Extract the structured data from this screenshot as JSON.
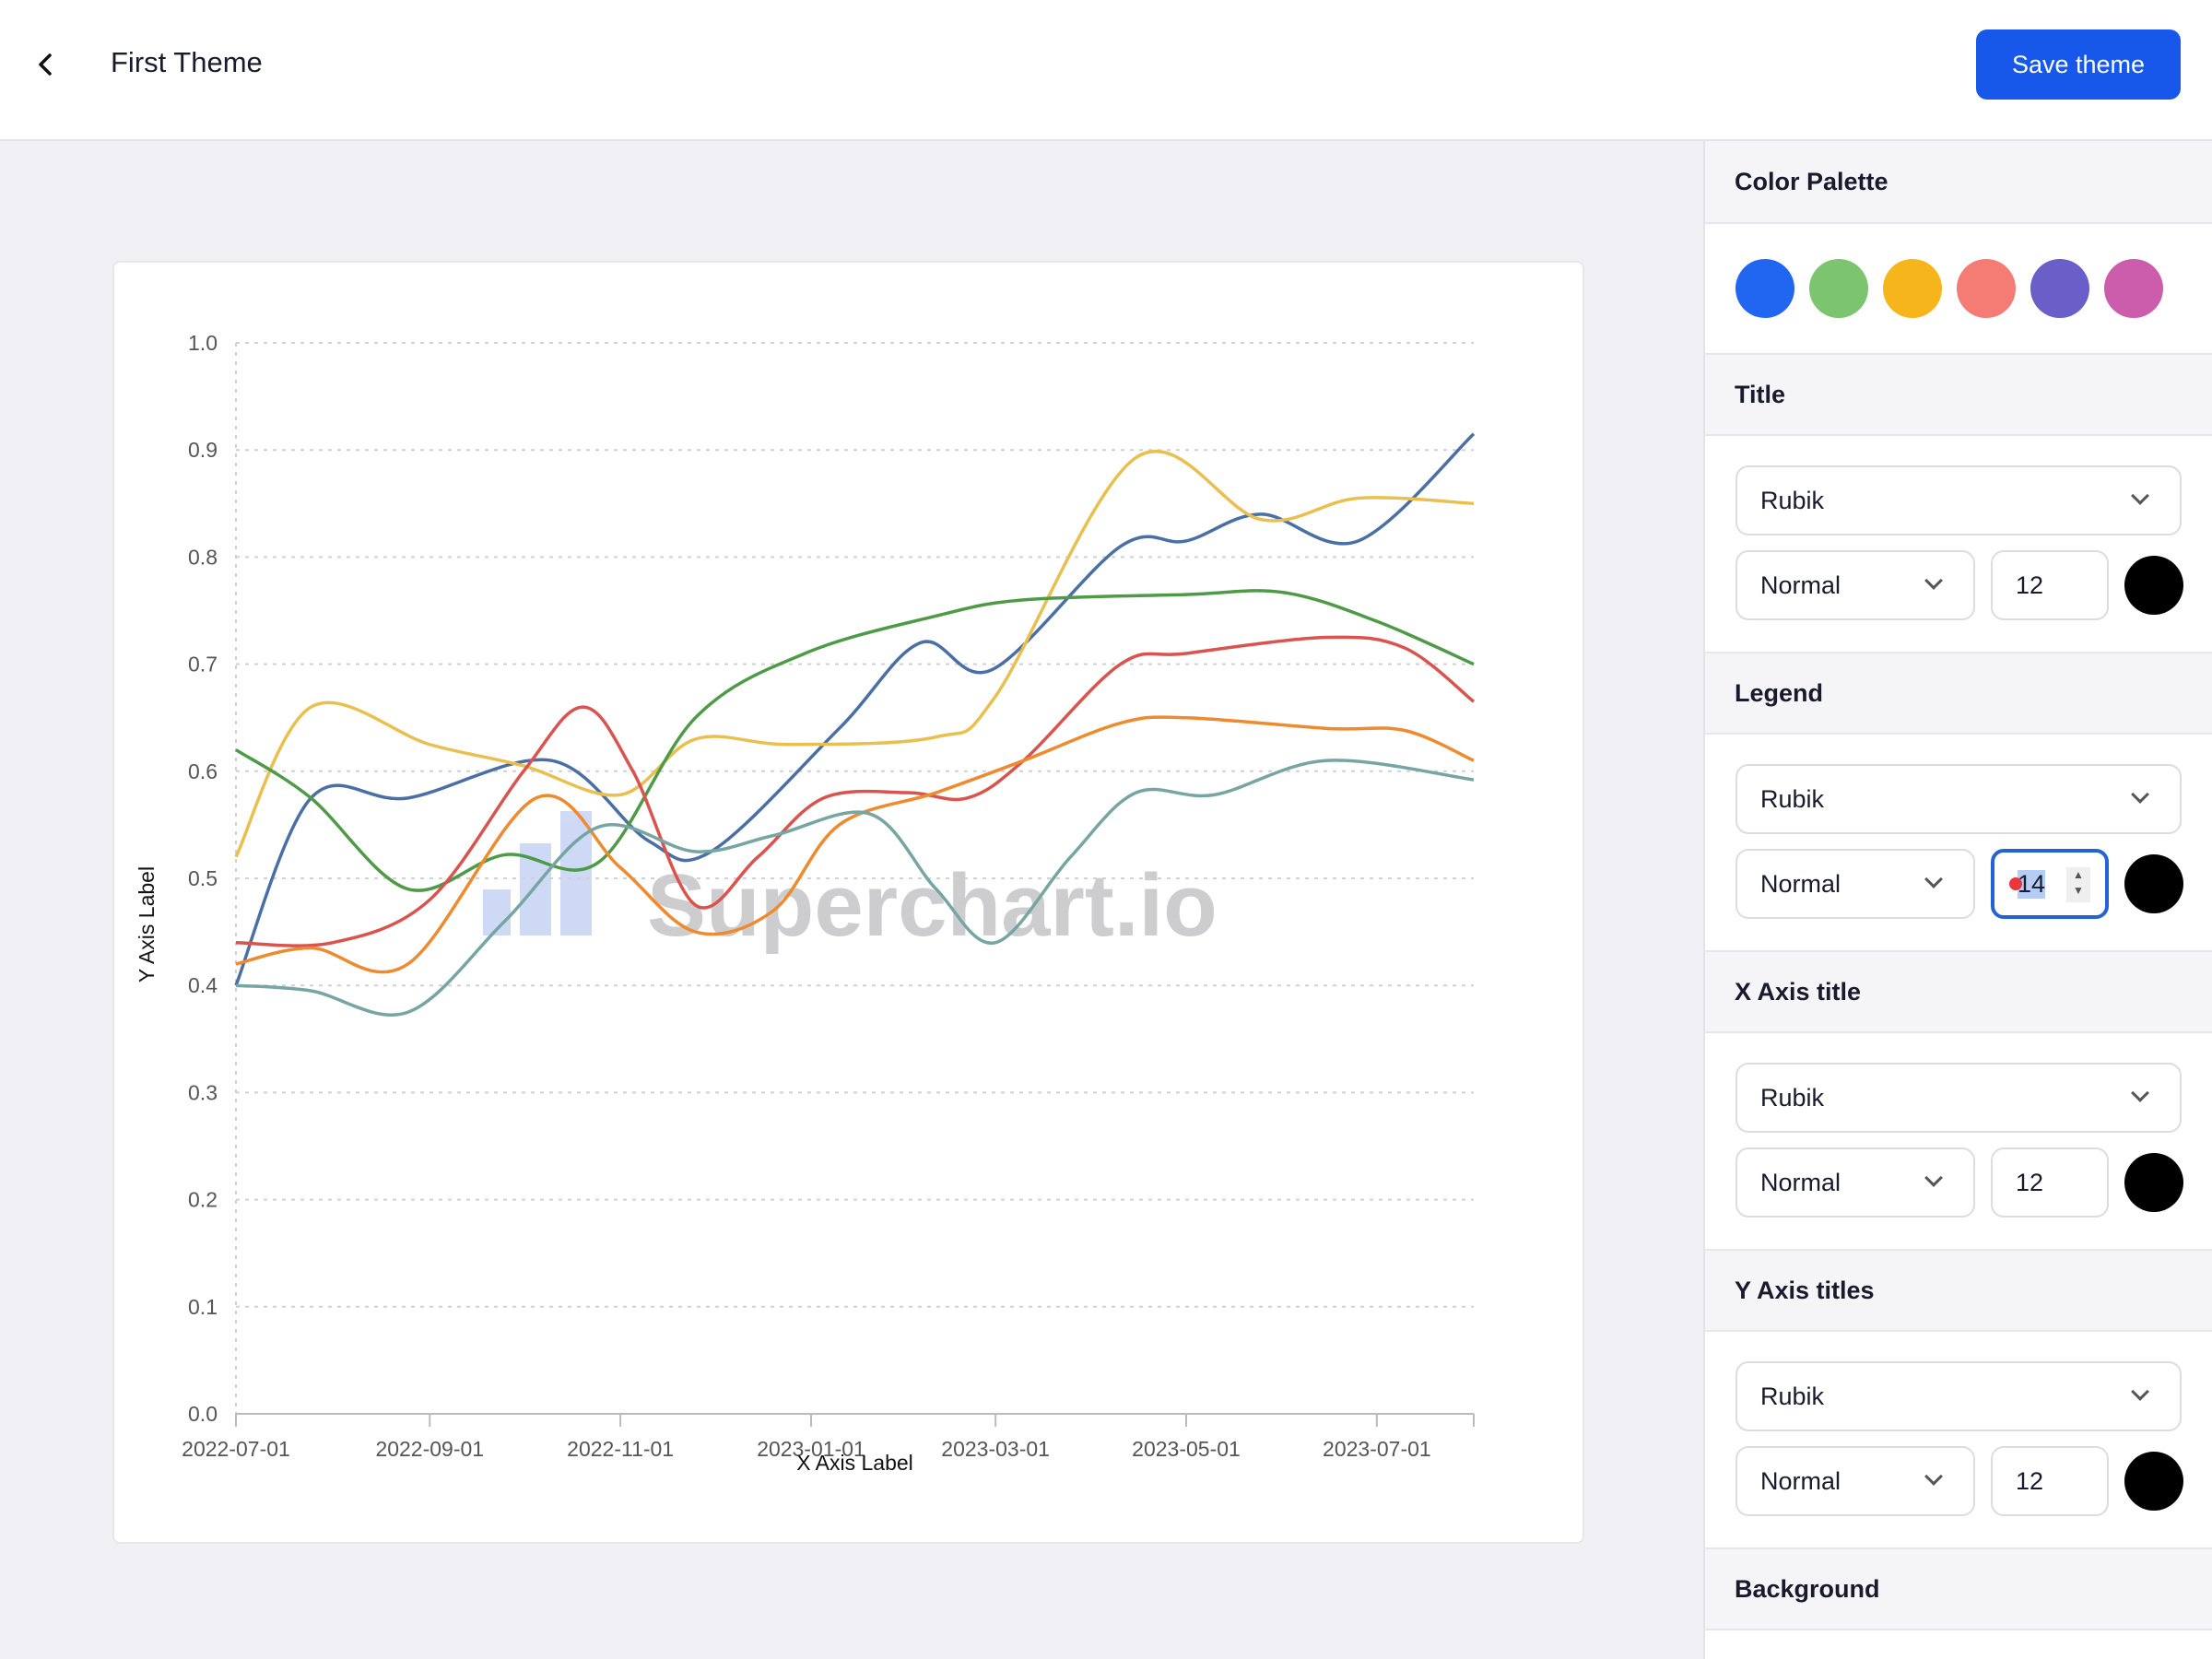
{
  "header": {
    "title": "First Theme",
    "save_label": "Save theme",
    "back_icon": "chevron-left-icon"
  },
  "sidebar": {
    "palette_title": "Color Palette",
    "palette": [
      "#2166f0",
      "#7cc46f",
      "#f7b51c",
      "#f47c74",
      "#6a5ec9",
      "#cc5dac"
    ],
    "sections": [
      {
        "title": "Title",
        "font": "Rubik",
        "weight": "Normal",
        "size": "12",
        "color": "#000000"
      },
      {
        "title": "Legend",
        "font": "Rubik",
        "weight": "Normal",
        "size": "14",
        "color": "#000000",
        "focused": true
      },
      {
        "title": "X Axis title",
        "font": "Rubik",
        "weight": "Normal",
        "size": "12",
        "color": "#000000"
      },
      {
        "title": "Y Axis titles",
        "font": "Rubik",
        "weight": "Normal",
        "size": "12",
        "color": "#000000"
      }
    ],
    "background_title": "Background"
  },
  "chart_data": {
    "type": "line",
    "xlabel": "X Axis Label",
    "ylabel": "Y Axis Label",
    "ylim": [
      0,
      1.0
    ],
    "xlim": [
      "2022-07-01",
      "2023-08-01"
    ],
    "yticks": [
      "0.0",
      "0.1",
      "0.2",
      "0.3",
      "0.4",
      "0.5",
      "0.6",
      "0.7",
      "0.8",
      "0.9",
      "1.0"
    ],
    "xticks": [
      "2022-07-01",
      "2022-09-01",
      "2022-11-01",
      "2023-01-01",
      "2023-03-01",
      "2023-05-01",
      "2023-07-01"
    ],
    "grid": true,
    "smooth": true,
    "watermark": "Superchart.io",
    "series": [
      {
        "color": "#4a6fa5",
        "points": [
          [
            "2022-07-01",
            0.4
          ],
          [
            "2022-07-25",
            0.575
          ],
          [
            "2022-08-25",
            0.575
          ],
          [
            "2022-10-10",
            0.61
          ],
          [
            "2022-11-10",
            0.535
          ],
          [
            "2022-11-30",
            0.525
          ],
          [
            "2023-01-10",
            0.64
          ],
          [
            "2023-02-05",
            0.72
          ],
          [
            "2023-02-28",
            0.695
          ],
          [
            "2023-04-10",
            0.81
          ],
          [
            "2023-05-01",
            0.815
          ],
          [
            "2023-05-25",
            0.84
          ],
          [
            "2023-06-25",
            0.815
          ],
          [
            "2023-08-01",
            0.915
          ]
        ]
      },
      {
        "color": "#e9c04f",
        "points": [
          [
            "2022-07-01",
            0.52
          ],
          [
            "2022-07-25",
            0.66
          ],
          [
            "2022-09-01",
            0.625
          ],
          [
            "2022-10-01",
            0.605
          ],
          [
            "2022-11-01",
            0.578
          ],
          [
            "2022-11-25",
            0.63
          ],
          [
            "2022-12-25",
            0.625
          ],
          [
            "2023-02-10",
            0.632
          ],
          [
            "2023-03-01",
            0.67
          ],
          [
            "2023-04-15",
            0.893
          ],
          [
            "2023-05-25",
            0.835
          ],
          [
            "2023-06-25",
            0.855
          ],
          [
            "2023-08-01",
            0.85
          ]
        ]
      },
      {
        "color": "#4e9a47",
        "points": [
          [
            "2022-07-01",
            0.62
          ],
          [
            "2022-07-25",
            0.575
          ],
          [
            "2022-08-25",
            0.49
          ],
          [
            "2022-09-25",
            0.522
          ],
          [
            "2022-10-25",
            0.515
          ],
          [
            "2022-11-25",
            0.65
          ],
          [
            "2022-12-30",
            0.71
          ],
          [
            "2023-02-10",
            0.745
          ],
          [
            "2023-03-10",
            0.76
          ],
          [
            "2023-05-01",
            0.765
          ],
          [
            "2023-06-01",
            0.767
          ],
          [
            "2023-07-01",
            0.74
          ],
          [
            "2023-08-01",
            0.7
          ]
        ]
      },
      {
        "color": "#d9534f",
        "points": [
          [
            "2022-07-01",
            0.44
          ],
          [
            "2022-08-01",
            0.44
          ],
          [
            "2022-09-01",
            0.48
          ],
          [
            "2022-10-01",
            0.6
          ],
          [
            "2022-10-20",
            0.66
          ],
          [
            "2022-11-05",
            0.6
          ],
          [
            "2022-11-25",
            0.475
          ],
          [
            "2022-12-15",
            0.52
          ],
          [
            "2023-01-05",
            0.575
          ],
          [
            "2023-02-01",
            0.58
          ],
          [
            "2023-02-20",
            0.575
          ],
          [
            "2023-03-10",
            0.61
          ],
          [
            "2023-04-10",
            0.7
          ],
          [
            "2023-05-01",
            0.71
          ],
          [
            "2023-06-15",
            0.725
          ],
          [
            "2023-07-10",
            0.715
          ],
          [
            "2023-08-01",
            0.665
          ]
        ]
      },
      {
        "color": "#ee8a2f",
        "points": [
          [
            "2022-07-01",
            0.42
          ],
          [
            "2022-07-25",
            0.435
          ],
          [
            "2022-08-25",
            0.42
          ],
          [
            "2022-10-05",
            0.575
          ],
          [
            "2022-11-01",
            0.51
          ],
          [
            "2022-11-25",
            0.45
          ],
          [
            "2022-12-20",
            0.47
          ],
          [
            "2023-01-10",
            0.55
          ],
          [
            "2023-02-10",
            0.58
          ],
          [
            "2023-03-10",
            0.61
          ],
          [
            "2023-04-10",
            0.645
          ],
          [
            "2023-05-01",
            0.65
          ],
          [
            "2023-06-15",
            0.64
          ],
          [
            "2023-07-10",
            0.638
          ],
          [
            "2023-08-01",
            0.61
          ]
        ]
      },
      {
        "color": "#76a5a4",
        "points": [
          [
            "2022-07-01",
            0.4
          ],
          [
            "2022-07-25",
            0.395
          ],
          [
            "2022-08-25",
            0.375
          ],
          [
            "2022-09-25",
            0.46
          ],
          [
            "2022-10-25",
            0.548
          ],
          [
            "2022-11-25",
            0.525
          ],
          [
            "2022-12-20",
            0.54
          ],
          [
            "2023-01-20",
            0.56
          ],
          [
            "2023-02-10",
            0.49
          ],
          [
            "2023-03-01",
            0.44
          ],
          [
            "2023-03-25",
            0.52
          ],
          [
            "2023-04-15",
            0.58
          ],
          [
            "2023-05-10",
            0.578
          ],
          [
            "2023-06-15",
            0.61
          ],
          [
            "2023-08-01",
            0.592
          ]
        ]
      }
    ]
  }
}
